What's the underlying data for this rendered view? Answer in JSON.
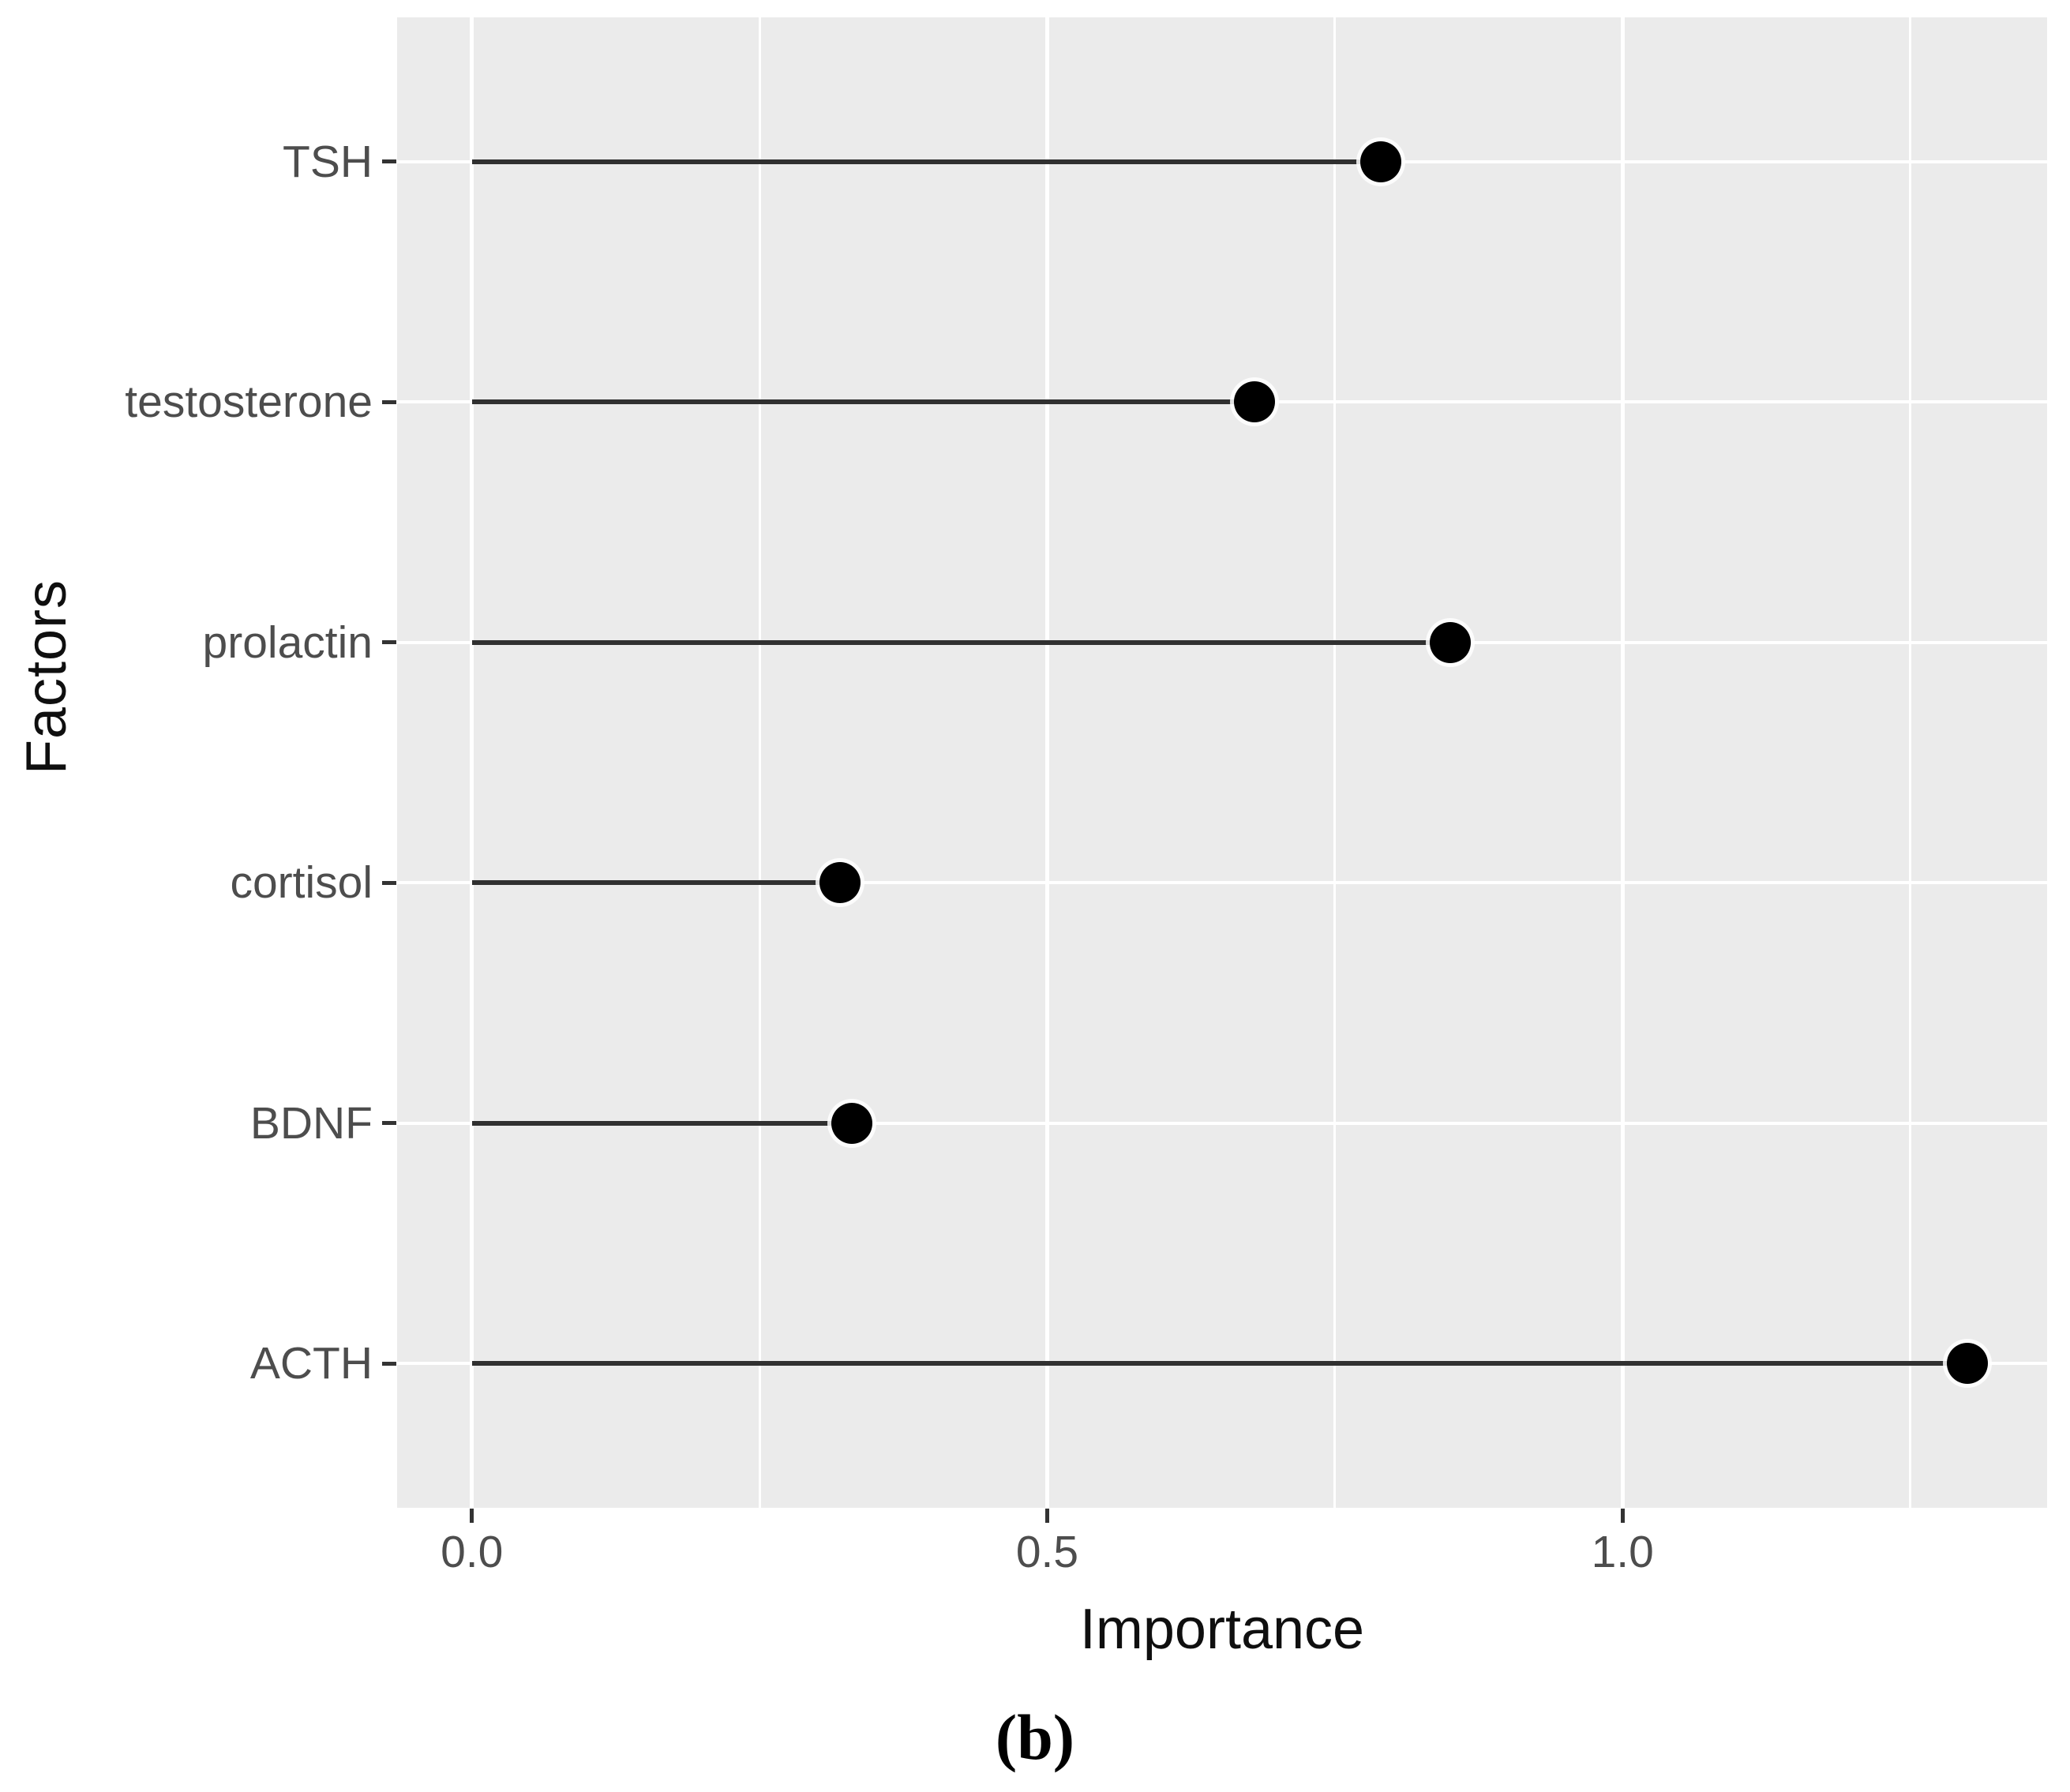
{
  "figure": {
    "caption": "(b)"
  },
  "chart_data": {
    "type": "scatter",
    "style": "horizontal lollipop (segment + point)",
    "categories": [
      "TSH",
      "testosterone",
      "prolactin",
      "cortisol",
      "BDNF",
      "ACTH"
    ],
    "values": [
      0.79,
      0.68,
      0.85,
      0.32,
      0.33,
      1.3
    ],
    "title": "",
    "xlabel": "Importance",
    "ylabel": "Factors",
    "xlim": [
      -0.065,
      1.369
    ],
    "x_major_ticks": [
      0,
      0.5,
      1
    ],
    "x_major_tick_labels": [
      "0.0",
      "0.5",
      "1.0"
    ],
    "x_minor_ticks": [
      0.25,
      0.75,
      1.25
    ],
    "grid": "white major gridlines at each category row and at x = 0.0/0.5/1.0; white minor gridlines at x = 0.25/0.75/1.25",
    "legend_position": "none"
  },
  "style": {
    "background": "#ffffff",
    "panel_background": "#ebebeb",
    "gridline_color": "#ffffff",
    "stem_color": "#303030",
    "point_color": "#000000",
    "axis_text_color": "#4d4d4d",
    "axis_title_color": "#0f0f0f"
  }
}
